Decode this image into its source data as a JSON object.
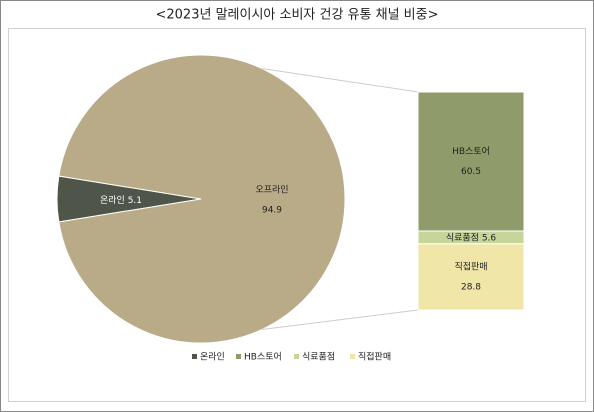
{
  "chart_data": {
    "type": "bar-of-pie",
    "title": "<2023년 말레이시아 소비자 건강 유통 채널 비중>",
    "categories": [
      "온라인",
      "오프라인"
    ],
    "values": [
      5.1,
      94.9
    ],
    "colors": [
      "#4f5548",
      "#b9aa88"
    ],
    "breakdown": {
      "categories": [
        "HB스토어",
        "식료품점",
        "직접판매"
      ],
      "values": [
        60.5,
        5.6,
        28.8
      ],
      "colors": [
        "#8f9b6a",
        "#c6d69b",
        "#f0e6a8"
      ]
    }
  }
}
